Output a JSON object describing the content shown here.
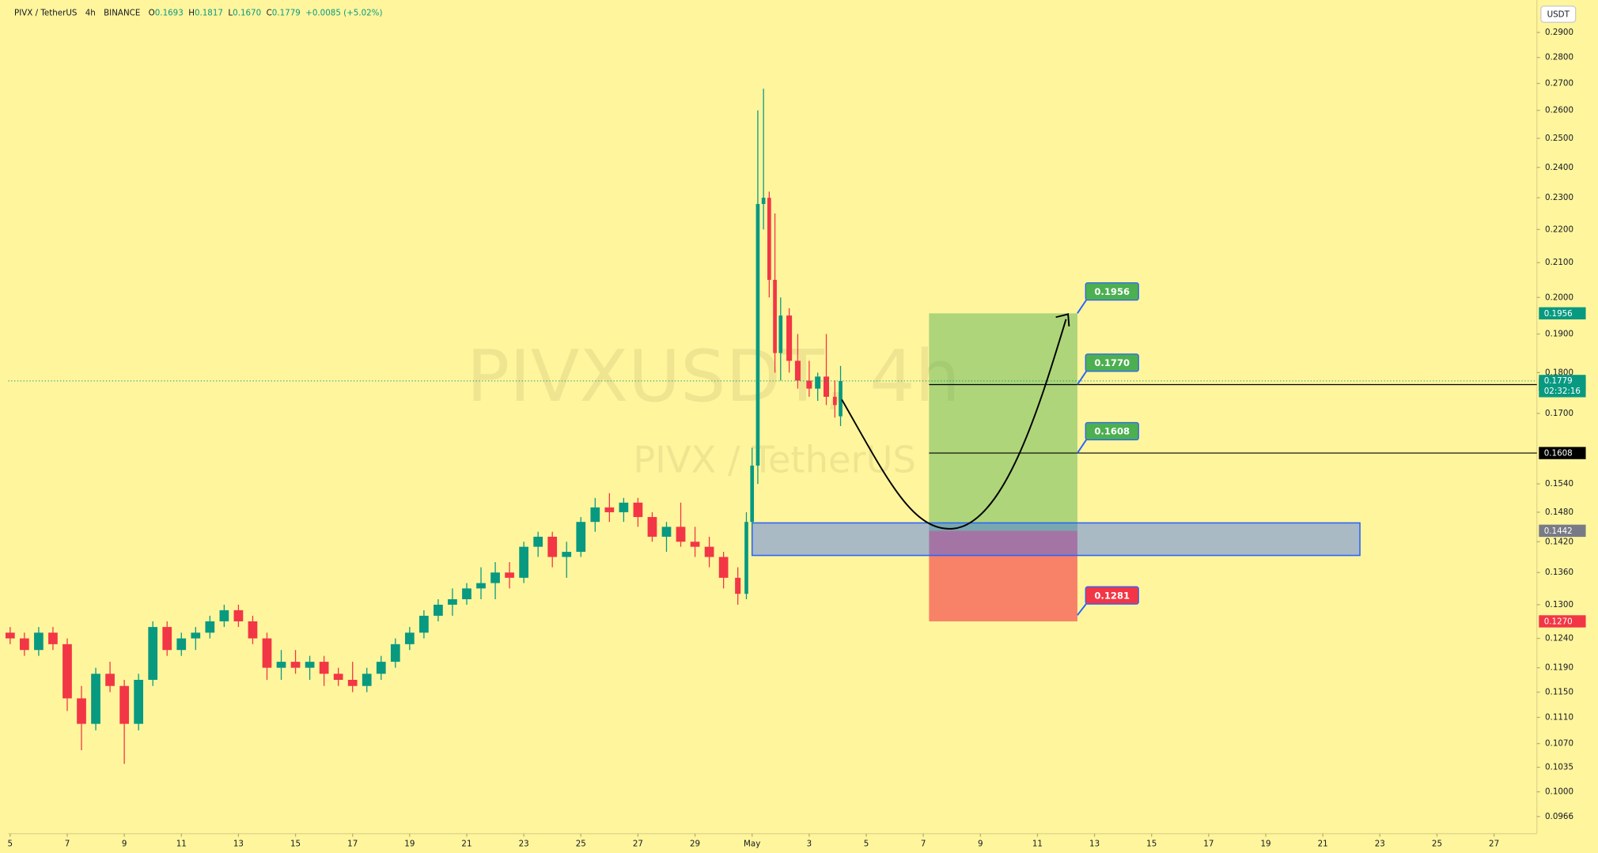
{
  "chart_data": {
    "type": "candlestick",
    "symbol": "PIVX / TetherUS",
    "interval": "4h",
    "exchange": "BINANCE",
    "ohlc_letters": [
      "O",
      "H",
      "L",
      "C"
    ],
    "header_values": [
      0.1693,
      0.1817,
      {
        "value": 0.167,
        "label": "0.1670"
      },
      0.1779
    ],
    "change_text": "+0.0085 (+5.02%)",
    "currency": "USDT",
    "watermark": [
      "PIVXUSDT, 4h",
      "PIVX / TetherUS"
    ],
    "countdown": "02:32:16",
    "log_scale": true,
    "up_color": "#089981",
    "down_color": "#f23645",
    "x": [
      5,
      5.5,
      6,
      6.5,
      7,
      7.5,
      8,
      8.5,
      9,
      9.5,
      10,
      10.5,
      11,
      11.5,
      12,
      12.5,
      13,
      13.5,
      14,
      14.5,
      15,
      15.5,
      16,
      16.5,
      17,
      17.5,
      18,
      18.5,
      19,
      19.5,
      20,
      20.5,
      21,
      21.5,
      22,
      22.5,
      23,
      23.5,
      24,
      24.5,
      25,
      25.5,
      26,
      26.5,
      27,
      27.5,
      28,
      28.5,
      29,
      29.5,
      30,
      30.5,
      30.8,
      31,
      31.2,
      31.4,
      31.6,
      31.8,
      32,
      32.3,
      32.6,
      33,
      33.3,
      33.6,
      33.9,
      34.1
    ],
    "open": [
      0.125,
      0.124,
      0.122,
      0.125,
      0.123,
      0.114,
      0.11,
      0.118,
      0.116,
      0.11,
      0.117,
      0.126,
      0.122,
      0.124,
      0.125,
      0.127,
      0.129,
      0.127,
      0.124,
      0.119,
      0.12,
      0.119,
      0.12,
      0.118,
      0.117,
      0.116,
      0.118,
      0.12,
      0.123,
      0.125,
      0.128,
      0.13,
      0.131,
      0.133,
      0.134,
      0.136,
      0.135,
      0.141,
      0.143,
      0.139,
      0.14,
      0.146,
      0.149,
      0.148,
      0.15,
      0.147,
      0.143,
      0.145,
      0.142,
      0.141,
      0.139,
      0.135,
      0.132,
      0.146,
      0.158,
      0.228,
      0.23,
      0.205,
      0.185,
      0.195,
      0.183,
      0.178,
      0.176,
      0.179,
      0.174,
      0.1693
    ],
    "high": [
      0.126,
      0.125,
      0.126,
      0.126,
      0.124,
      0.116,
      0.119,
      0.12,
      0.117,
      0.118,
      0.127,
      0.127,
      0.125,
      0.126,
      0.128,
      0.13,
      0.13,
      0.128,
      0.125,
      0.122,
      0.122,
      0.121,
      0.121,
      0.119,
      0.12,
      0.119,
      0.121,
      0.124,
      0.126,
      0.129,
      0.131,
      0.133,
      0.134,
      0.137,
      0.138,
      0.138,
      0.142,
      0.144,
      0.144,
      0.142,
      0.147,
      0.151,
      0.152,
      0.151,
      0.151,
      0.148,
      0.146,
      0.15,
      0.145,
      0.143,
      0.14,
      0.137,
      0.148,
      0.162,
      0.26,
      0.268,
      0.232,
      0.225,
      0.2,
      0.197,
      0.19,
      0.183,
      0.18,
      0.19,
      0.178,
      0.1817
    ],
    "low": [
      0.123,
      0.121,
      0.121,
      0.122,
      0.112,
      0.106,
      0.109,
      0.115,
      0.104,
      0.109,
      0.116,
      0.121,
      0.121,
      0.122,
      0.124,
      0.126,
      0.126,
      0.123,
      0.117,
      0.117,
      0.118,
      0.117,
      0.116,
      0.116,
      0.115,
      0.115,
      0.117,
      0.119,
      0.122,
      0.124,
      0.127,
      0.128,
      0.13,
      0.131,
      0.131,
      0.133,
      0.134,
      0.139,
      0.137,
      0.135,
      0.139,
      0.144,
      0.146,
      0.146,
      0.145,
      0.142,
      0.14,
      0.141,
      0.139,
      0.137,
      0.133,
      0.13,
      0.131,
      0.145,
      0.154,
      0.22,
      0.2,
      0.18,
      0.178,
      0.18,
      0.176,
      0.174,
      0.173,
      0.172,
      0.169,
      0.167
    ],
    "close": [
      0.124,
      0.122,
      0.125,
      0.123,
      0.114,
      0.11,
      0.118,
      0.116,
      0.11,
      0.117,
      0.126,
      0.122,
      0.124,
      0.125,
      0.127,
      0.129,
      0.127,
      0.124,
      0.119,
      0.12,
      0.119,
      0.12,
      0.118,
      0.117,
      0.116,
      0.118,
      0.12,
      0.123,
      0.125,
      0.128,
      0.13,
      0.131,
      0.133,
      0.134,
      0.136,
      0.135,
      0.141,
      0.143,
      0.139,
      0.14,
      0.146,
      0.149,
      0.148,
      0.15,
      0.147,
      0.143,
      0.145,
      0.142,
      0.141,
      0.139,
      0.135,
      0.132,
      0.146,
      0.158,
      0.228,
      0.23,
      0.205,
      0.185,
      0.195,
      0.183,
      0.178,
      0.176,
      0.179,
      0.174,
      0.172,
      0.1779
    ],
    "xlim": [
      4.93,
      58.5
    ],
    "ylim": [
      0.0943,
      0.3035
    ],
    "xticks": [
      5,
      7,
      9,
      11,
      13,
      15,
      17,
      19,
      21,
      23,
      25,
      27,
      29,
      {
        "value": 31,
        "label": "May"
      },
      {
        "value": 33,
        "label": "3"
      },
      {
        "value": 35,
        "label": "5"
      },
      {
        "value": 37,
        "label": "7"
      },
      {
        "value": 39,
        "label": "9"
      },
      {
        "value": 41,
        "label": "11"
      },
      {
        "value": 43,
        "label": "13"
      },
      {
        "value": 45,
        "label": "15"
      },
      {
        "value": 47,
        "label": "17"
      },
      {
        "value": 49,
        "label": "19"
      },
      {
        "value": 51,
        "label": "21"
      },
      {
        "value": 53,
        "label": "23"
      },
      {
        "value": 55,
        "label": "25"
      },
      {
        "value": 57,
        "label": "27"
      }
    ],
    "yticks": [
      {
        "value": 0.29,
        "label": "0.2900"
      },
      {
        "value": 0.28,
        "label": "0.2800"
      },
      {
        "value": 0.27,
        "label": "0.2700"
      },
      {
        "value": 0.26,
        "label": "0.2600"
      },
      {
        "value": 0.25,
        "label": "0.2500"
      },
      {
        "value": 0.24,
        "label": "0.2400"
      },
      {
        "value": 0.23,
        "label": "0.2300"
      },
      {
        "value": 0.22,
        "label": "0.2200"
      },
      {
        "value": 0.21,
        "label": "0.2100"
      },
      {
        "value": 0.2,
        "label": "0.2000"
      },
      {
        "value": 0.19,
        "label": "0.1900"
      },
      {
        "value": 0.18,
        "label": "0.1800"
      },
      {
        "value": 0.17,
        "label": "0.1700"
      },
      {
        "value": 0.154,
        "label": "0.1540"
      },
      {
        "value": 0.148,
        "label": "0.1480"
      },
      {
        "value": 0.142,
        "label": "0.1420"
      },
      {
        "value": 0.136,
        "label": "0.1360"
      },
      {
        "value": 0.13,
        "label": "0.1300"
      },
      {
        "value": 0.124,
        "label": "0.1240"
      },
      {
        "value": 0.119,
        "label": "0.1190"
      },
      {
        "value": 0.115,
        "label": "0.1150"
      },
      {
        "value": 0.111,
        "label": "0.1110"
      },
      {
        "value": 0.107,
        "label": "0.1070"
      },
      0.1035,
      {
        "value": 0.1,
        "label": "0.1000"
      },
      0.0966
    ],
    "zone": {
      "x": [
        31,
        52.3
      ],
      "y": [
        0.1393,
        0.1458
      ],
      "color": "#2962ff"
    },
    "position": {
      "x": [
        37.2,
        42.4
      ],
      "target": 0.1956,
      "entry": 0.1442,
      "stop": {
        "value": 0.127,
        "label": "0.1270"
      },
      "profit_color": "#4caf50",
      "loss_color": "#f23645"
    },
    "levels": [
      {
        "value": 0.177,
        "label": "0.1770"
      },
      {
        "value": 0.1608
      }
    ],
    "stop_callout": 0.1281
  }
}
